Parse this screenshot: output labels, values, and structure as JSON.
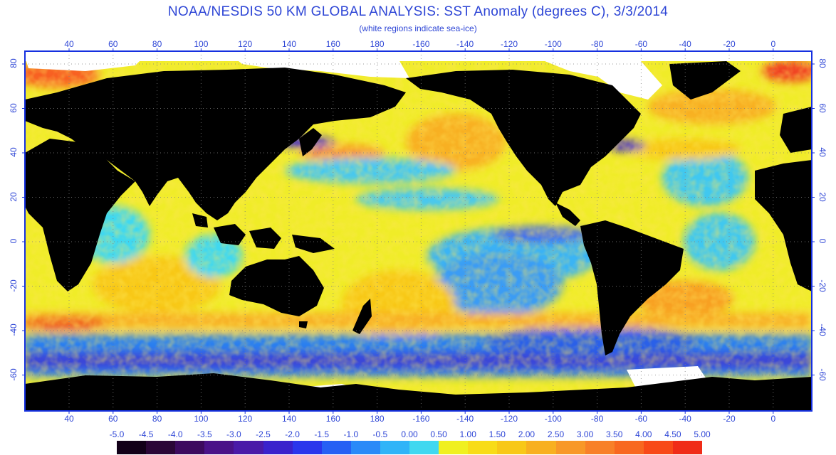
{
  "header": {
    "title": "NOAA/NESDIS 50 KM GLOBAL ANALYSIS: SST Anomaly (degrees C), 3/3/2014",
    "subtitle": "(white regions indicate sea-ice)"
  },
  "map": {
    "lon_ticks": [
      "40",
      "60",
      "80",
      "100",
      "120",
      "140",
      "160",
      "180",
      "-160",
      "-140",
      "-120",
      "-100",
      "-80",
      "-60",
      "-40",
      "-20",
      "0"
    ],
    "lat_ticks": [
      "80",
      "60",
      "40",
      "20",
      "0",
      "-20",
      "-40",
      "-60"
    ],
    "colors": {
      "land": "#000000",
      "ice": "#ffffff",
      "frame": "#1530e0",
      "grid": "#8a8a8a"
    }
  },
  "colorbar": {
    "labels": [
      "-5.0",
      "-4.5",
      "-4.0",
      "-3.5",
      "-3.0",
      "-2.5",
      "-2.0",
      "-1.5",
      "-1.0",
      "-0.5",
      "0.00",
      "0.50",
      "1.00",
      "1.50",
      "2.00",
      "2.50",
      "3.00",
      "3.50",
      "4.00",
      "4.50",
      "5.00"
    ],
    "colors": [
      "#120018",
      "#2a0636",
      "#3c0a5e",
      "#4a1288",
      "#4a1aa8",
      "#3a22cc",
      "#2a36ec",
      "#2660f4",
      "#2a8af8",
      "#30b4f8",
      "#40d8f0",
      "#f0f020",
      "#f8dc18",
      "#f8c818",
      "#f8b020",
      "#f89828",
      "#f88028",
      "#f86820",
      "#f84a18",
      "#f02c18"
    ]
  }
}
